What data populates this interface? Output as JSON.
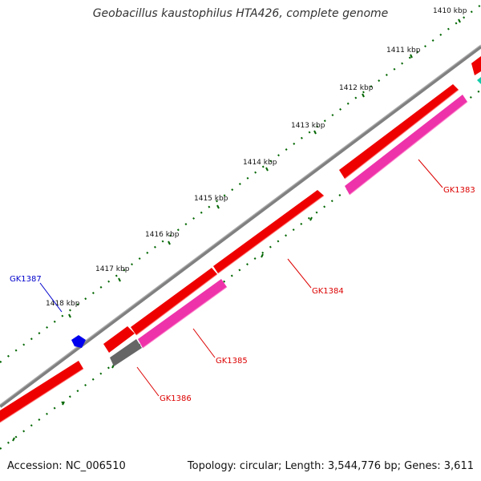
{
  "title": "Geobacillus kaustophilus HTA426, complete genome",
  "footer": {
    "accession": "Accession: NC_006510",
    "summary": "Topology: circular; Length: 3,544,776 bp; Genes: 3,611"
  },
  "ruler": {
    "unit": "kbp",
    "labels": [
      "1410 kbp",
      "1411 kbp",
      "1412 kbp",
      "1413 kbp",
      "1414 kbp",
      "1415 kbp",
      "1416 kbp",
      "1417 kbp",
      "1418 kbp"
    ]
  },
  "genes": [
    {
      "id": "GK1383",
      "color": "#dd0000"
    },
    {
      "id": "GK1384",
      "color": "#dd0000"
    },
    {
      "id": "GK1385",
      "color": "#dd0000"
    },
    {
      "id": "GK1386",
      "color": "#dd0000"
    },
    {
      "id": "GK1387",
      "color": "#0000cc"
    }
  ],
  "colors": {
    "backbone": "#808080",
    "cds_forward": "#ee0000",
    "cds_reverse": "#ee33aa",
    "pseudo": "#666666",
    "blue_feature": "#0000ee",
    "teal_feature": "#11ccaa",
    "tick": "#006600"
  }
}
